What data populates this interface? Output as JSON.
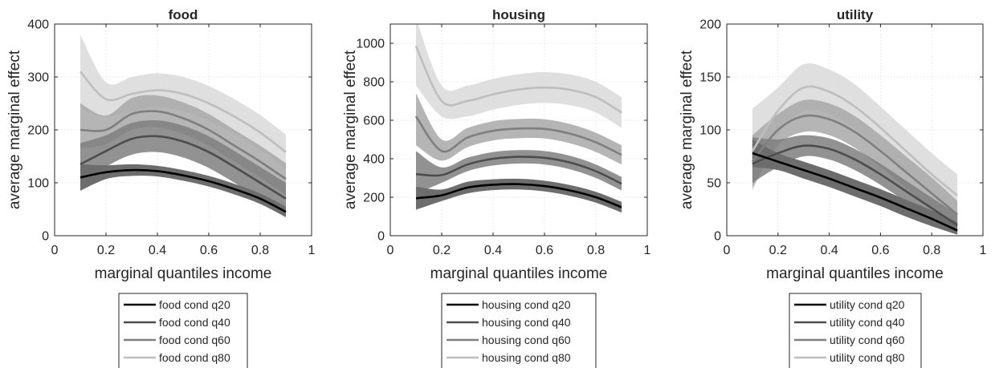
{
  "chart_data": [
    {
      "type": "line",
      "title": "food",
      "xlabel": "marginal quantiles income",
      "ylabel": "average marginal effect",
      "xlim": [
        0,
        1
      ],
      "ylim": [
        0,
        400
      ],
      "xticks": [
        0,
        0.2,
        0.4,
        0.6,
        0.8,
        1
      ],
      "xtick_labels": [
        "0",
        "0.2",
        "0.4",
        "0.6",
        "0.8",
        "1"
      ],
      "yticks": [
        0,
        100,
        200,
        300,
        400
      ],
      "ytick_labels": [
        "0",
        "100",
        "200",
        "300",
        "400"
      ],
      "grid": true,
      "legend_position": "below",
      "x": [
        0.1,
        0.2,
        0.3,
        0.4,
        0.5,
        0.6,
        0.7,
        0.8,
        0.9
      ],
      "series": [
        {
          "name": "food cond q20",
          "color": "#000000",
          "values": [
            110,
            120,
            124,
            122,
            114,
            103,
            88,
            70,
            45
          ],
          "lower": [
            85,
            107,
            113,
            112,
            104,
            93,
            78,
            60,
            35
          ],
          "upper": [
            135,
            133,
            135,
            132,
            124,
            113,
            98,
            80,
            55
          ]
        },
        {
          "name": "food cond q40",
          "color": "#4d4d4d",
          "values": [
            135,
            160,
            183,
            188,
            178,
            158,
            130,
            100,
            70
          ],
          "lower": [
            95,
            130,
            153,
            158,
            148,
            128,
            100,
            70,
            40
          ],
          "upper": [
            175,
            190,
            213,
            218,
            208,
            188,
            160,
            130,
            100
          ]
        },
        {
          "name": "food cond q60",
          "color": "#7f7f7f",
          "values": [
            200,
            200,
            230,
            235,
            222,
            200,
            170,
            140,
            107
          ],
          "lower": [
            165,
            173,
            200,
            205,
            192,
            170,
            140,
            110,
            77
          ],
          "upper": [
            250,
            227,
            260,
            265,
            252,
            230,
            200,
            170,
            137
          ]
        },
        {
          "name": "food cond q80",
          "color": "#bebebe",
          "values": [
            310,
            258,
            268,
            275,
            268,
            250,
            225,
            195,
            158
          ],
          "lower": [
            240,
            225,
            235,
            243,
            235,
            217,
            192,
            162,
            125
          ],
          "upper": [
            380,
            290,
            300,
            307,
            300,
            283,
            258,
            228,
            191
          ]
        }
      ]
    },
    {
      "type": "line",
      "title": "housing",
      "xlabel": "marginal quantiles income",
      "ylabel": "average marginal effect",
      "xlim": [
        0,
        1
      ],
      "ylim": [
        0,
        1100
      ],
      "xticks": [
        0,
        0.2,
        0.4,
        0.6,
        0.8,
        1
      ],
      "xtick_labels": [
        "0",
        "0.2",
        "0.4",
        "0.6",
        "0.8",
        "1"
      ],
      "yticks": [
        0,
        200,
        400,
        600,
        800,
        1000
      ],
      "ytick_labels": [
        "0",
        "200",
        "400",
        "600",
        "800",
        "1000"
      ],
      "grid": true,
      "legend_position": "below",
      "x": [
        0.1,
        0.2,
        0.3,
        0.4,
        0.5,
        0.6,
        0.7,
        0.8,
        0.9
      ],
      "series": [
        {
          "name": "housing cond q20",
          "color": "#000000",
          "values": [
            195,
            210,
            250,
            265,
            268,
            258,
            235,
            200,
            148
          ],
          "lower": [
            135,
            180,
            220,
            237,
            240,
            230,
            207,
            172,
            120
          ],
          "upper": [
            255,
            240,
            280,
            293,
            296,
            286,
            263,
            228,
            176
          ]
        },
        {
          "name": "housing cond q40",
          "color": "#4d4d4d",
          "values": [
            320,
            315,
            370,
            400,
            410,
            405,
            380,
            335,
            270
          ],
          "lower": [
            220,
            275,
            335,
            365,
            375,
            370,
            345,
            300,
            235
          ],
          "upper": [
            440,
            355,
            405,
            435,
            445,
            440,
            415,
            370,
            305
          ]
        },
        {
          "name": "housing cond q60",
          "color": "#7f7f7f",
          "values": [
            620,
            440,
            510,
            545,
            557,
            555,
            530,
            485,
            420
          ],
          "lower": [
            470,
            390,
            460,
            495,
            507,
            505,
            480,
            435,
            370
          ],
          "upper": [
            740,
            500,
            560,
            595,
            607,
            605,
            580,
            535,
            470
          ]
        },
        {
          "name": "housing cond q80",
          "color": "#bebebe",
          "values": [
            985,
            700,
            700,
            735,
            760,
            770,
            758,
            720,
            640
          ],
          "lower": [
            780,
            620,
            620,
            655,
            680,
            690,
            678,
            640,
            560
          ],
          "upper": [
            1130,
            780,
            780,
            815,
            840,
            850,
            838,
            800,
            720
          ]
        }
      ]
    },
    {
      "type": "line",
      "title": "utility",
      "xlabel": "marginal quantiles income",
      "ylabel": "average marginal effect",
      "xlim": [
        0,
        1
      ],
      "ylim": [
        0,
        200
      ],
      "xticks": [
        0,
        0.2,
        0.4,
        0.6,
        0.8,
        1
      ],
      "xtick_labels": [
        "0",
        "0.2",
        "0.4",
        "0.6",
        "0.8",
        "1"
      ],
      "yticks": [
        0,
        50,
        100,
        150,
        200
      ],
      "ytick_labels": [
        "0",
        "50",
        "100",
        "150",
        "200"
      ],
      "grid": true,
      "legend_position": "below",
      "x": [
        0.1,
        0.2,
        0.3,
        0.4,
        0.5,
        0.6,
        0.7,
        0.8,
        0.9
      ],
      "series": [
        {
          "name": "utility cond q20",
          "color": "#000000",
          "values": [
            78,
            70,
            62,
            54,
            45,
            36,
            26,
            16,
            5
          ],
          "lower": [
            65,
            62,
            54,
            46,
            37,
            28,
            18,
            9,
            1
          ],
          "upper": [
            91,
            78,
            70,
            62,
            53,
            44,
            34,
            24,
            13
          ]
        },
        {
          "name": "utility cond q40",
          "color": "#4d4d4d",
          "values": [
            68,
            78,
            85,
            82,
            72,
            58,
            42,
            26,
            10
          ],
          "lower": [
            50,
            65,
            75,
            72,
            62,
            48,
            32,
            16,
            2
          ],
          "upper": [
            93,
            91,
            95,
            92,
            82,
            68,
            52,
            36,
            20
          ]
        },
        {
          "name": "utility cond q60",
          "color": "#7f7f7f",
          "values": [
            70,
            100,
            113,
            110,
            98,
            80,
            60,
            40,
            20
          ],
          "lower": [
            45,
            85,
            98,
            95,
            83,
            65,
            45,
            25,
            7
          ],
          "upper": [
            95,
            115,
            128,
            125,
            113,
            95,
            75,
            55,
            33
          ]
        },
        {
          "name": "utility cond q80",
          "color": "#bebebe",
          "values": [
            80,
            118,
            140,
            136,
            122,
            102,
            80,
            58,
            38
          ],
          "lower": [
            42,
            95,
            118,
            115,
            101,
            82,
            60,
            38,
            18
          ],
          "upper": [
            120,
            140,
            162,
            157,
            143,
            122,
            100,
            78,
            58
          ]
        }
      ]
    }
  ]
}
